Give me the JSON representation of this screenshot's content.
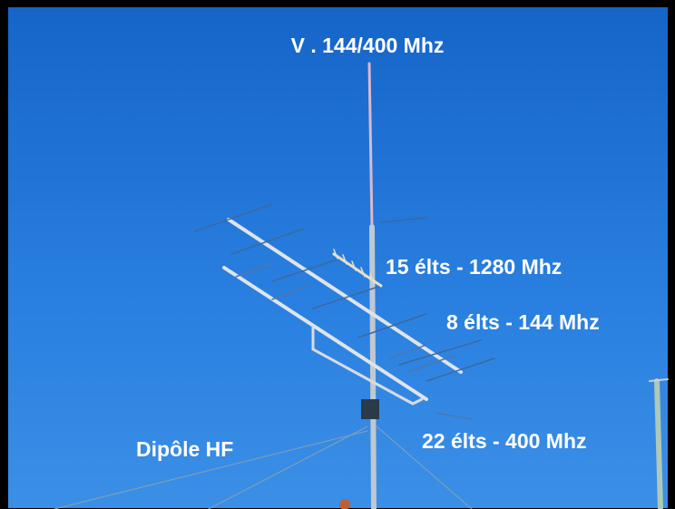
{
  "annotations": [
    "V . 144/400 Mhz",
    "15 élts - 1280 Mhz",
    "8 élts - 144 Mhz",
    "22 élts - 400 Mhz",
    "Dipôle HF"
  ]
}
